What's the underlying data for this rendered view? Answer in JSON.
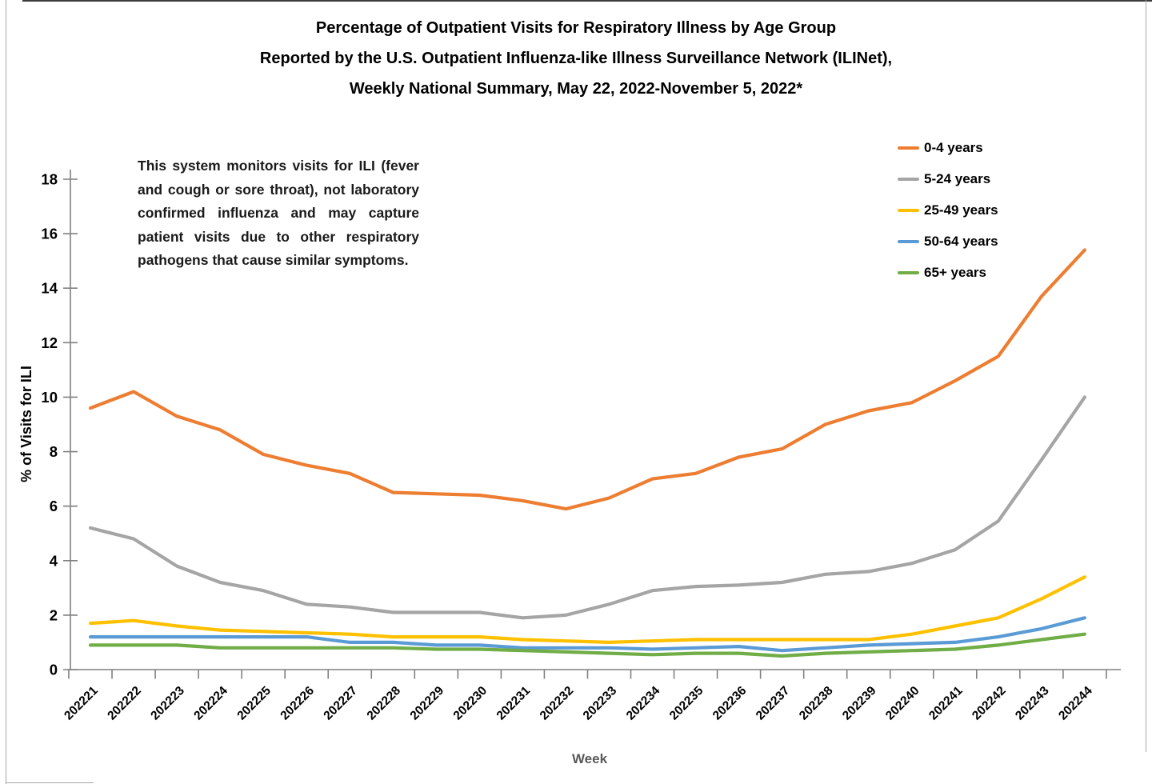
{
  "chart_data": {
    "type": "line",
    "title_lines": [
      "Percentage of Outpatient Visits for Respiratory Illness by Age Group",
      "Reported by the U.S. Outpatient Influenza-like Illness Surveillance Network (ILINet),",
      "Weekly National Summary, May 22, 2022-November 5, 2022*"
    ],
    "annotation": "This system monitors visits for ILI (fever and cough or sore throat), not laboratory confirmed influenza and may capture patient visits due to other respiratory pathogens that cause similar symptoms.",
    "xlabel": "Week",
    "ylabel": "% of Visits for ILI",
    "ylim": [
      0,
      18
    ],
    "ytick_step": 2,
    "grid": false,
    "legend_position": "top-right",
    "x_categories": [
      "202221",
      "202222",
      "202223",
      "202224",
      "202225",
      "202226",
      "202227",
      "202228",
      "202229",
      "202230",
      "202231",
      "202232",
      "202233",
      "202234",
      "202235",
      "202236",
      "202237",
      "202238",
      "202239",
      "202240",
      "202241",
      "202242",
      "202243",
      "202244"
    ],
    "series": [
      {
        "name": "0-4 years",
        "color": "#ED7D31",
        "values": [
          9.6,
          10.2,
          9.3,
          8.8,
          7.9,
          7.5,
          7.2,
          6.5,
          6.45,
          6.4,
          6.2,
          5.9,
          6.3,
          7.0,
          7.2,
          7.8,
          8.1,
          9.0,
          9.5,
          9.8,
          10.6,
          11.5,
          13.7,
          15.4
        ]
      },
      {
        "name": "5-24 years",
        "color": "#A5A5A5",
        "values": [
          5.2,
          4.8,
          3.8,
          3.2,
          2.9,
          2.4,
          2.3,
          2.1,
          2.1,
          2.1,
          1.9,
          2.0,
          2.4,
          2.9,
          3.05,
          3.1,
          3.2,
          3.5,
          3.6,
          3.9,
          4.4,
          5.45,
          7.7,
          10.0
        ]
      },
      {
        "name": "25-49 years",
        "color": "#FFC000",
        "values": [
          1.7,
          1.8,
          1.6,
          1.45,
          1.4,
          1.35,
          1.3,
          1.2,
          1.2,
          1.2,
          1.1,
          1.05,
          1.0,
          1.05,
          1.1,
          1.1,
          1.1,
          1.1,
          1.1,
          1.3,
          1.6,
          1.9,
          2.6,
          3.4
        ]
      },
      {
        "name": "50-64 years",
        "color": "#5B9BD5",
        "values": [
          1.2,
          1.2,
          1.2,
          1.2,
          1.2,
          1.2,
          1.0,
          1.0,
          0.9,
          0.9,
          0.8,
          0.8,
          0.8,
          0.75,
          0.8,
          0.85,
          0.7,
          0.8,
          0.9,
          0.95,
          1.0,
          1.2,
          1.5,
          1.9
        ]
      },
      {
        "name": "65+ years",
        "color": "#70AD47",
        "values": [
          0.9,
          0.9,
          0.9,
          0.8,
          0.8,
          0.8,
          0.8,
          0.8,
          0.75,
          0.75,
          0.7,
          0.65,
          0.6,
          0.55,
          0.6,
          0.6,
          0.5,
          0.6,
          0.65,
          0.7,
          0.75,
          0.9,
          1.1,
          1.3
        ]
      }
    ],
    "axis_color": "#808080",
    "xlabel_color": "#595959"
  }
}
